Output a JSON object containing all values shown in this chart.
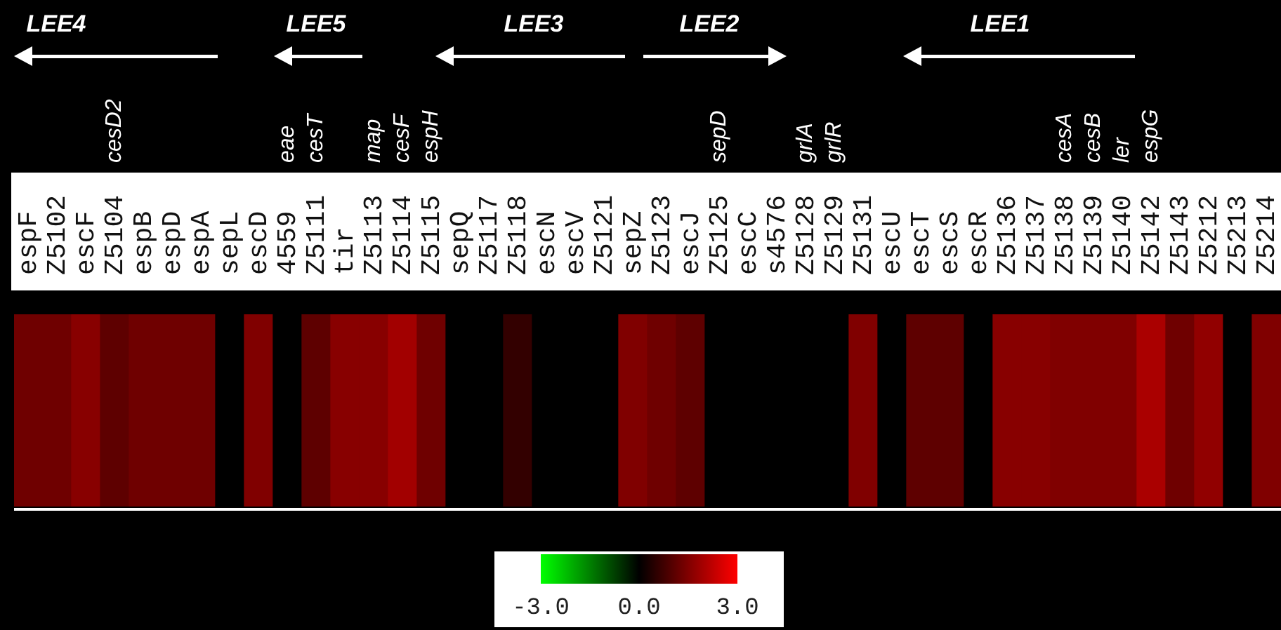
{
  "chart_data": {
    "type": "heatmap",
    "categories": [
      "espF",
      "Z5102",
      "escF",
      "Z5104",
      "espB",
      "espD",
      "espA",
      "sepL",
      "escD",
      "4559",
      "Z5111",
      "tir",
      "Z5113",
      "Z5114",
      "Z5115",
      "sepQ",
      "Z5117",
      "Z5118",
      "escN",
      "escV",
      "Z5121",
      "sepZ",
      "Z5123",
      "escJ",
      "Z5125",
      "escC",
      "s4576",
      "Z5128",
      "Z5129",
      "Z5131",
      "escU",
      "escT",
      "escS",
      "escR",
      "Z5136",
      "Z5137",
      "Z5138",
      "Z5139",
      "Z5140",
      "Z5142",
      "Z5143",
      "Z5212",
      "Z5213",
      "Z5214"
    ],
    "y_categories": [
      null
    ],
    "cells": [
      [
        1.3,
        1.3,
        1.6,
        1.1,
        1.3,
        1.3,
        1.3,
        0,
        1.5,
        0,
        1.1,
        1.6,
        1.6,
        1.9,
        1.3,
        0,
        0,
        0.6,
        0,
        0,
        0,
        1.5,
        1.3,
        1.1,
        0,
        0,
        0,
        0,
        0,
        1.5,
        0,
        1.1,
        1.1,
        0,
        1.6,
        1.6,
        1.5,
        1.5,
        1.5,
        2.0,
        1.3,
        1.7,
        0,
        1.5
      ]
    ],
    "clim": [
      -3,
      3
    ],
    "cticks": [
      {
        "value": -3,
        "label": "-3.0"
      },
      {
        "value": 0,
        "label": "0.0"
      },
      {
        "value": 3,
        "label": "3.0"
      }
    ],
    "annotations": [
      "LEE4",
      "LEE5",
      "LEE3",
      "LEE2",
      "LEE1",
      "cesD2",
      "eae",
      "cesT",
      "map",
      "cesF",
      "espH",
      "sepD",
      "grlA",
      "grlR",
      "cesA",
      "cesB",
      "ler",
      "espG"
    ]
  }
}
